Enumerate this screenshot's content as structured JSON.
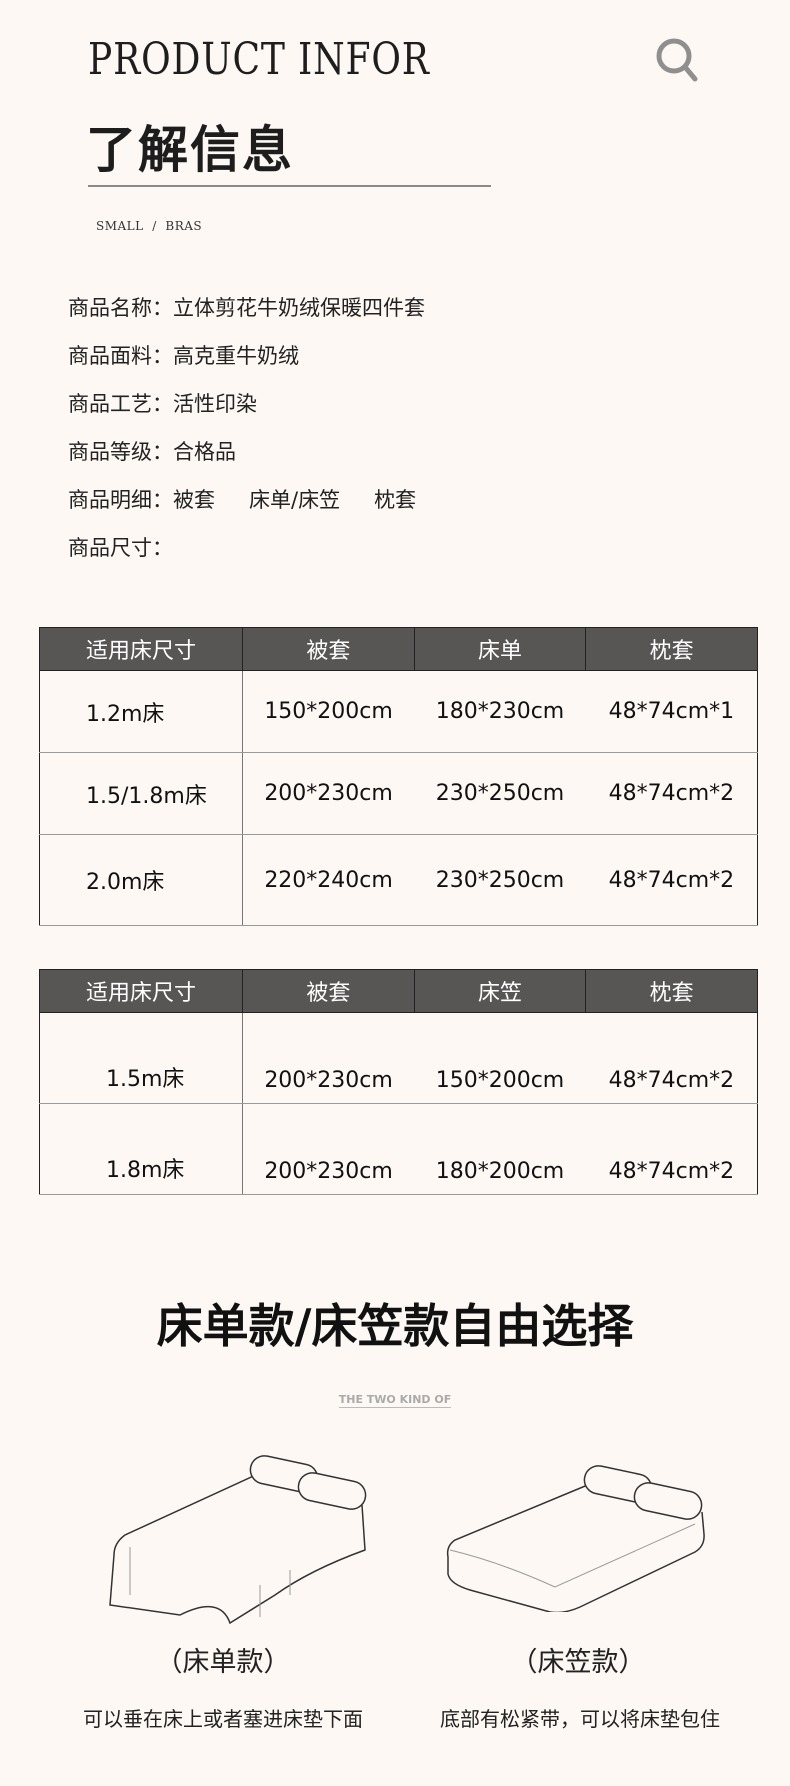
{
  "header": {
    "title_en": "PRODUCT INFOR",
    "title_cn": "了解信息",
    "breadcrumb": "SMALL  /  BRAS",
    "icon": "search-icon"
  },
  "info": [
    {
      "label": "商品名称：",
      "value": "立体剪花牛奶绒保暖四件套"
    },
    {
      "label": "商品面料：",
      "value": "高克重牛奶绒"
    },
    {
      "label": "商品工艺：",
      "value": "活性印染"
    },
    {
      "label": "商品等级：",
      "value": "合格品"
    },
    {
      "label": "商品明细：",
      "items": [
        "被套",
        "床单/床笠",
        "枕套"
      ]
    },
    {
      "label": "商品尺寸：",
      "value": ""
    }
  ],
  "table1": {
    "headers": [
      "适用床尺寸",
      "被套",
      "床单",
      "枕套"
    ],
    "rows": [
      [
        "1.2m床",
        "150*200cm",
        "180*230cm",
        "48*74cm*1"
      ],
      [
        "1.5/1.8m床",
        "200*230cm",
        "230*250cm",
        "48*74cm*2"
      ],
      [
        "2.0m床",
        "220*240cm",
        "230*250cm",
        "48*74cm*2"
      ]
    ]
  },
  "table2": {
    "headers": [
      "适用床尺寸",
      "被套",
      "床笠",
      "枕套"
    ],
    "rows": [
      [
        "1.5m床",
        "200*230cm",
        "150*200cm",
        "48*74cm*2"
      ],
      [
        "1.8m床",
        "200*230cm",
        "180*200cm",
        "48*74cm*2"
      ]
    ]
  },
  "choice": {
    "headline": "床单款/床笠款自由选择",
    "subtitle": "THE TWO KIND OF",
    "options": [
      {
        "label": "（床单款）",
        "caption": "可以垂在床上或者塞进床垫下面"
      },
      {
        "label": "（床笠款）",
        "caption": "底部有松紧带，可以将床垫包住"
      }
    ]
  },
  "colors": {
    "background": "#fdf8f3",
    "table_header": "#585654"
  }
}
